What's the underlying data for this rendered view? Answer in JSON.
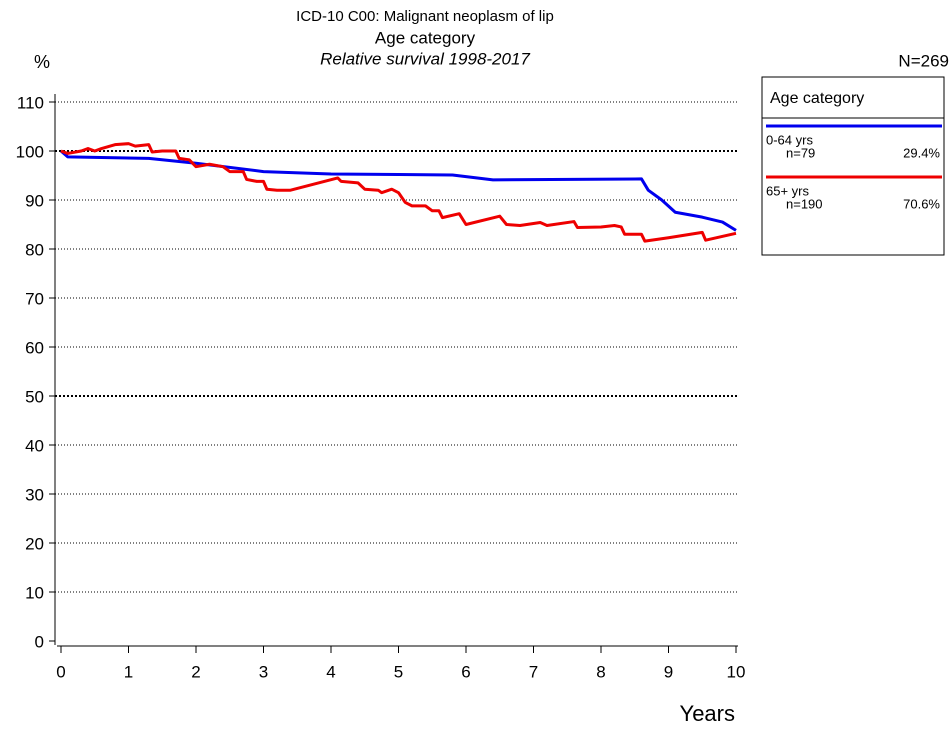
{
  "chart_data": {
    "type": "line",
    "title": "ICD-10 C00: Malignant neoplasm of lip",
    "subtitle": "Age category",
    "note": "Relative survival 1998-2017",
    "ylabel": "%",
    "xlabel": "Years",
    "total": "N=269",
    "legend_title": "Age category",
    "xlim": [
      0,
      10
    ],
    "ylim": [
      0,
      110
    ],
    "xticks": [
      0,
      1,
      2,
      3,
      4,
      5,
      6,
      7,
      8,
      9,
      10
    ],
    "yticks": [
      0,
      10,
      20,
      30,
      40,
      50,
      60,
      70,
      80,
      90,
      100,
      110
    ],
    "grid": true,
    "emphasized_grid": [
      50,
      100
    ],
    "series": [
      {
        "name": "0-64 yrs",
        "n": "n=79",
        "percent": "29.4%",
        "color": "#0000ee",
        "x": [
          0,
          0.1,
          1.3,
          2,
          3,
          4,
          5,
          5.8,
          6.4,
          8.6,
          8.7,
          8.9,
          9.1,
          9.5,
          9.8,
          10
        ],
        "values": [
          100,
          98.8,
          98.5,
          97.5,
          95.8,
          95.3,
          95.2,
          95.1,
          94.1,
          94.3,
          92,
          90,
          87.5,
          86.5,
          85.5,
          83.8
        ]
      },
      {
        "name": "65+ yrs",
        "n": "n=190",
        "percent": "70.6%",
        "color": "#ee0000",
        "x": [
          0,
          0.1,
          0.3,
          0.4,
          0.5,
          0.6,
          0.8,
          1,
          1.1,
          1.3,
          1.35,
          1.5,
          1.7,
          1.75,
          1.9,
          2,
          2.2,
          2.4,
          2.5,
          2.7,
          2.75,
          2.9,
          3,
          3.05,
          3.2,
          3.4,
          4.1,
          4.15,
          4.4,
          4.5,
          4.7,
          4.75,
          4.9,
          5,
          5.1,
          5.2,
          5.4,
          5.5,
          5.6,
          5.65,
          5.9,
          6,
          6.5,
          6.6,
          6.8,
          7.1,
          7.2,
          7.6,
          7.65,
          8,
          8.2,
          8.3,
          8.35,
          8.6,
          8.65,
          9,
          9.5,
          9.55,
          10
        ],
        "values": [
          100,
          99.5,
          100,
          100.5,
          100,
          100.5,
          101.3,
          101.5,
          101,
          101.3,
          99.8,
          100,
          100,
          98.5,
          98.2,
          96.8,
          97.3,
          96.8,
          95.8,
          95.8,
          94.2,
          93.8,
          93.8,
          92.2,
          92,
          92,
          94.5,
          93.8,
          93.5,
          92.2,
          92,
          91.5,
          92.2,
          91.5,
          89.5,
          88.8,
          88.8,
          87.8,
          87.8,
          86.4,
          87.2,
          85,
          86.7,
          85,
          84.8,
          85.4,
          84.8,
          85.6,
          84.4,
          84.5,
          84.8,
          84.5,
          83,
          83,
          81.6,
          82.3,
          83.4,
          81.8,
          83.2
        ]
      }
    ]
  }
}
